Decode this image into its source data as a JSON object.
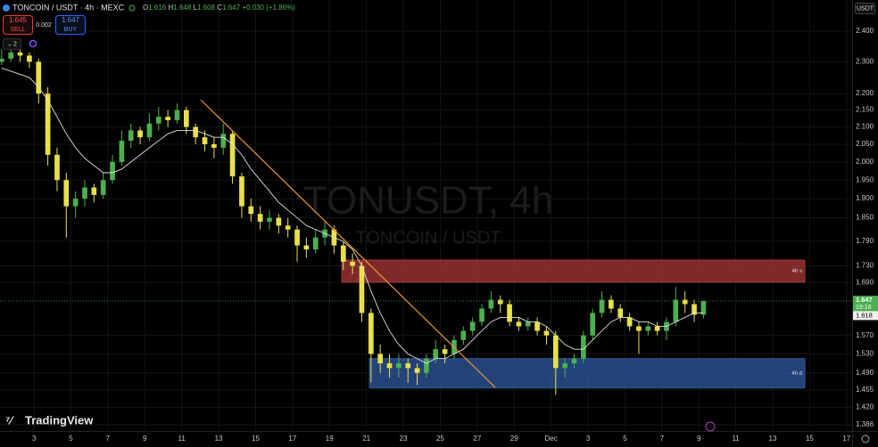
{
  "chart_data": {
    "type": "candlestick",
    "header": {
      "symbol": "TONCOIN / USDT · 4h · MEXC",
      "ohlc": [
        "O",
        "1.616",
        "H",
        "1.648",
        "L",
        "1.608",
        "C",
        "1.647",
        "+0.030 (+1.86%)"
      ]
    },
    "trade": {
      "sell_price": "1.645",
      "sell": "SELL",
      "spread": "0.002",
      "buy_price": "1.647",
      "buy": "BUY"
    },
    "indicators_count": "2",
    "currency": "USDT",
    "watermark": {
      "title": "TONUSDT, 4h",
      "subtitle": "TONCOIN / USDT"
    },
    "logo": "TradingView",
    "log_scale": true,
    "grid": true,
    "up_color": "#4caf50",
    "down_color": "#e8e04a",
    "ma_color": "#e0e0e0",
    "xlim": [
      1.16,
      47.3
    ],
    "ylim": [
      1.374,
      2.507
    ],
    "xticks": [
      3,
      5,
      7,
      9,
      11,
      13,
      15,
      17,
      19,
      21,
      23,
      25,
      27,
      29,
      {
        "value": 31,
        "label": "Dec"
      },
      {
        "value": 33,
        "label": "3"
      },
      {
        "value": 35,
        "label": "5"
      },
      {
        "value": 37,
        "label": "7"
      },
      {
        "value": 39,
        "label": "9"
      },
      {
        "value": 41,
        "label": "11"
      },
      {
        "value": 43,
        "label": "13"
      },
      {
        "value": 45,
        "label": "15"
      },
      {
        "value": 47,
        "label": "17"
      }
    ],
    "yticks": [
      {
        "value": 2.4,
        "label": "2.400"
      },
      {
        "value": 2.3,
        "label": "2.300"
      },
      {
        "value": 2.2,
        "label": "2.200"
      },
      {
        "value": 2.15,
        "label": "2.150"
      },
      {
        "value": 2.1,
        "label": "2.100"
      },
      {
        "value": 2.05,
        "label": "2.050"
      },
      {
        "value": 2.0,
        "label": "2.000"
      },
      {
        "value": 1.95,
        "label": "1.950"
      },
      {
        "value": 1.9,
        "label": "1.900"
      },
      {
        "value": 1.85,
        "label": "1.850"
      },
      {
        "value": 1.79,
        "label": "1.790"
      },
      {
        "value": 1.73,
        "label": "1.730"
      },
      {
        "value": 1.69,
        "label": "1.690"
      },
      {
        "value": 1.57,
        "label": "1.570"
      },
      {
        "value": 1.53,
        "label": "1.530"
      },
      {
        "value": 1.49,
        "label": "1.490"
      },
      {
        "value": 1.455,
        "label": "1.455"
      },
      {
        "value": 1.42,
        "label": "1.420"
      },
      {
        "value": 1.386,
        "label": "1.386"
      }
    ],
    "x": [
      1.25,
      1.75,
      2.25,
      2.75,
      3.25,
      3.75,
      4.25,
      4.75,
      5.25,
      5.75,
      6.25,
      6.75,
      7.25,
      7.75,
      8.25,
      8.75,
      9.25,
      9.75,
      10.25,
      10.75,
      11.25,
      11.75,
      12.25,
      12.75,
      13.25,
      13.75,
      14.25,
      14.75,
      15.25,
      15.75,
      16.25,
      16.75,
      17.25,
      17.75,
      18.25,
      18.75,
      19.25,
      19.75,
      20.25,
      20.75,
      21.25,
      21.75,
      22.25,
      22.75,
      23.25,
      23.75,
      24.25,
      24.75,
      25.25,
      25.75,
      26.25,
      26.75,
      27.25,
      27.75,
      28.25,
      28.75,
      29.25,
      29.75,
      30.25,
      30.75,
      31.25,
      31.75,
      32.25,
      32.75,
      33.25,
      33.75,
      34.25,
      34.75,
      35.25,
      35.75,
      36.25,
      36.75,
      37.25,
      37.75,
      38.25,
      38.75,
      39.25
    ],
    "ohlc": [
      [
        2.3,
        2.34,
        2.29,
        2.31
      ],
      [
        2.31,
        2.35,
        2.3,
        2.33
      ],
      [
        2.33,
        2.34,
        2.3,
        2.32
      ],
      [
        2.32,
        2.33,
        2.28,
        2.3
      ],
      [
        2.3,
        2.31,
        2.17,
        2.2
      ],
      [
        2.2,
        2.22,
        1.99,
        2.02
      ],
      [
        2.02,
        2.04,
        1.92,
        1.95
      ],
      [
        1.95,
        1.97,
        1.8,
        1.88
      ],
      [
        1.88,
        1.92,
        1.85,
        1.9
      ],
      [
        1.9,
        1.95,
        1.88,
        1.93
      ],
      [
        1.93,
        1.94,
        1.89,
        1.91
      ],
      [
        1.91,
        1.97,
        1.9,
        1.95
      ],
      [
        1.95,
        2.02,
        1.94,
        2.0
      ],
      [
        2.0,
        2.09,
        1.99,
        2.06
      ],
      [
        2.06,
        2.11,
        2.04,
        2.09
      ],
      [
        2.09,
        2.1,
        2.05,
        2.07
      ],
      [
        2.07,
        2.14,
        2.06,
        2.11
      ],
      [
        2.11,
        2.16,
        2.09,
        2.13
      ],
      [
        2.13,
        2.15,
        2.1,
        2.12
      ],
      [
        2.12,
        2.17,
        2.11,
        2.15
      ],
      [
        2.15,
        2.16,
        2.08,
        2.1
      ],
      [
        2.1,
        2.11,
        2.05,
        2.07
      ],
      [
        2.07,
        2.09,
        2.03,
        2.05
      ],
      [
        2.05,
        2.07,
        2.01,
        2.04
      ],
      [
        2.04,
        2.11,
        2.02,
        2.08
      ],
      [
        2.08,
        2.09,
        1.94,
        1.96
      ],
      [
        1.96,
        1.97,
        1.85,
        1.88
      ],
      [
        1.88,
        1.9,
        1.84,
        1.86
      ],
      [
        1.86,
        1.88,
        1.82,
        1.84
      ],
      [
        1.84,
        1.87,
        1.82,
        1.85
      ],
      [
        1.85,
        1.86,
        1.81,
        1.83
      ],
      [
        1.83,
        1.85,
        1.8,
        1.82
      ],
      [
        1.82,
        1.83,
        1.74,
        1.78
      ],
      [
        1.78,
        1.8,
        1.75,
        1.77
      ],
      [
        1.77,
        1.82,
        1.76,
        1.8
      ],
      [
        1.8,
        1.84,
        1.78,
        1.82
      ],
      [
        1.82,
        1.83,
        1.76,
        1.78
      ],
      [
        1.78,
        1.79,
        1.72,
        1.74
      ],
      [
        1.74,
        1.76,
        1.71,
        1.73
      ],
      [
        1.73,
        1.74,
        1.6,
        1.62
      ],
      [
        1.62,
        1.63,
        1.47,
        1.53
      ],
      [
        1.53,
        1.55,
        1.49,
        1.51
      ],
      [
        1.51,
        1.53,
        1.48,
        1.5
      ],
      [
        1.5,
        1.53,
        1.48,
        1.51
      ],
      [
        1.51,
        1.52,
        1.47,
        1.5
      ],
      [
        1.5,
        1.51,
        1.465,
        1.49
      ],
      [
        1.49,
        1.53,
        1.48,
        1.52
      ],
      [
        1.52,
        1.56,
        1.51,
        1.54
      ],
      [
        1.54,
        1.55,
        1.51,
        1.53
      ],
      [
        1.53,
        1.57,
        1.52,
        1.56
      ],
      [
        1.56,
        1.59,
        1.55,
        1.58
      ],
      [
        1.58,
        1.61,
        1.57,
        1.6
      ],
      [
        1.6,
        1.64,
        1.59,
        1.63
      ],
      [
        1.63,
        1.67,
        1.62,
        1.65
      ],
      [
        1.65,
        1.66,
        1.62,
        1.64
      ],
      [
        1.64,
        1.65,
        1.59,
        1.6
      ],
      [
        1.6,
        1.61,
        1.58,
        1.59
      ],
      [
        1.59,
        1.61,
        1.58,
        1.6
      ],
      [
        1.6,
        1.61,
        1.57,
        1.58
      ],
      [
        1.58,
        1.59,
        1.55,
        1.57
      ],
      [
        1.57,
        1.58,
        1.445,
        1.5
      ],
      [
        1.5,
        1.52,
        1.48,
        1.51
      ],
      [
        1.51,
        1.53,
        1.5,
        1.52
      ],
      [
        1.52,
        1.58,
        1.51,
        1.57
      ],
      [
        1.57,
        1.63,
        1.56,
        1.62
      ],
      [
        1.62,
        1.67,
        1.61,
        1.65
      ],
      [
        1.65,
        1.66,
        1.62,
        1.63
      ],
      [
        1.63,
        1.64,
        1.6,
        1.61
      ],
      [
        1.61,
        1.62,
        1.58,
        1.59
      ],
      [
        1.59,
        1.6,
        1.53,
        1.58
      ],
      [
        1.58,
        1.6,
        1.57,
        1.59
      ],
      [
        1.59,
        1.6,
        1.57,
        1.58
      ],
      [
        1.58,
        1.61,
        1.56,
        1.6
      ],
      [
        1.6,
        1.68,
        1.59,
        1.65
      ],
      [
        1.65,
        1.67,
        1.62,
        1.64
      ],
      [
        1.64,
        1.65,
        1.6,
        1.616
      ],
      [
        1.616,
        1.648,
        1.608,
        1.647
      ]
    ],
    "ma": [
      2.28,
      2.27,
      2.26,
      2.25,
      2.22,
      2.18,
      2.13,
      2.08,
      2.04,
      2.01,
      1.99,
      1.97,
      1.97,
      1.98,
      2.0,
      2.02,
      2.04,
      2.06,
      2.08,
      2.09,
      2.09,
      2.09,
      2.08,
      2.07,
      2.07,
      2.05,
      2.02,
      1.98,
      1.95,
      1.92,
      1.89,
      1.87,
      1.85,
      1.83,
      1.82,
      1.81,
      1.8,
      1.79,
      1.77,
      1.73,
      1.67,
      1.62,
      1.58,
      1.55,
      1.53,
      1.52,
      1.51,
      1.52,
      1.52,
      1.53,
      1.54,
      1.56,
      1.58,
      1.6,
      1.61,
      1.61,
      1.61,
      1.6,
      1.6,
      1.59,
      1.57,
      1.55,
      1.54,
      1.54,
      1.56,
      1.58,
      1.6,
      1.61,
      1.61,
      1.6,
      1.6,
      1.59,
      1.59,
      1.6,
      1.61,
      1.62,
      1.62
    ],
    "zones": [
      {
        "label": "4h s",
        "x": [
          19.67,
          44.74
        ],
        "y": [
          1.744,
          1.691
        ],
        "color": "#a83838"
      },
      {
        "label": "4h d",
        "x": [
          21.16,
          44.74
        ],
        "y": [
          1.52,
          1.459
        ],
        "color": "#2f5aa0"
      }
    ],
    "trendline": {
      "x": [
        12.03,
        27.98
      ],
      "y": [
        2.181,
        1.46
      ],
      "color": "#f0932b"
    },
    "last_price": {
      "value": 1.647,
      "countdown": "19:16"
    },
    "ma_last": 1.618
  }
}
